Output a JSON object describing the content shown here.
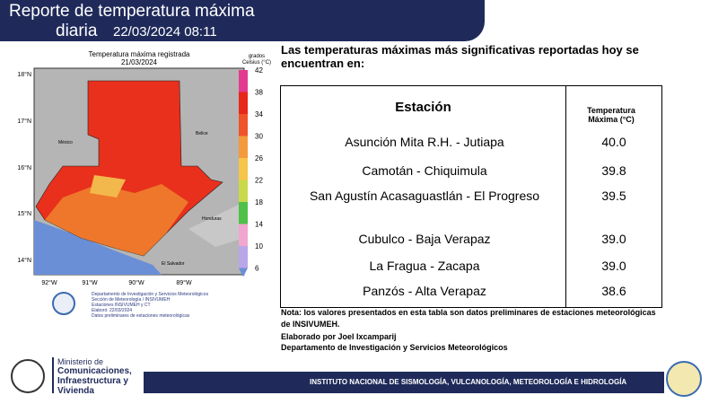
{
  "header": {
    "title": "Reporte de temperatura máxima",
    "subtitle": "diaria",
    "date": "22/03/2024 08:11"
  },
  "map": {
    "title": "Temperatura máxima registrada",
    "date": "21/03/2024",
    "colorbar_label_1": "grados",
    "colorbar_label_2": "Celsius (°C)",
    "colorbar_ticks": [
      42,
      38,
      34,
      30,
      26,
      22,
      18,
      14,
      10,
      6
    ],
    "lat_labels": [
      "18°N",
      "17°N",
      "16°N",
      "15°N",
      "14°N"
    ],
    "lon_labels": [
      "92°W",
      "91°W",
      "90°W",
      "89°W"
    ],
    "countries": [
      "México",
      "Belice",
      "Honduras",
      "El Salvador"
    ],
    "credits": [
      "Departamento de Investigación y Servicios Meteorológicos",
      "Sección de Meteorología / INSIVUMEH",
      "Estaciones INSIVUMEH y CT",
      "Elaboró: 22/03/2024",
      "Datos preliminares de estaciones meteorológicas"
    ]
  },
  "intro": "Las temperaturas máximas más significativas reportadas hoy se encuentran en:",
  "table": {
    "header": [
      "Estación",
      "Temperatura Máxima (°C)"
    ],
    "rows": [
      [
        "Asunción Mita R.H. - Jutiapa",
        "40.0"
      ],
      [
        "Camotán - Chiquimula",
        "39.8"
      ],
      [
        "San Agustín Acasaguastlán - El Progreso",
        "39.5"
      ],
      [
        "Cubulco - Baja Verapaz",
        "39.0"
      ],
      [
        "La Fragua - Zacapa",
        "39.0"
      ],
      [
        "Panzós - Alta Verapaz",
        "38.6"
      ]
    ]
  },
  "note": "Nota: los valores presentados en esta tabla son datos preliminares de estaciones meteorológicas de INSIVUMEH.",
  "author": "Elaborado por Joel Ixcamparij",
  "department": "Departamento de Investigación y Servicios Meteorológicos",
  "footer": {
    "ministry_small": "Ministerio de",
    "ministry": "Comunicaciones, Infraestructura y Vivienda",
    "institute": "INSTITUTO NACIONAL DE SISMOLOGÍA, VULCANOLOGÍA, METEOROLOGÍA E HIDROLOGÍA"
  }
}
